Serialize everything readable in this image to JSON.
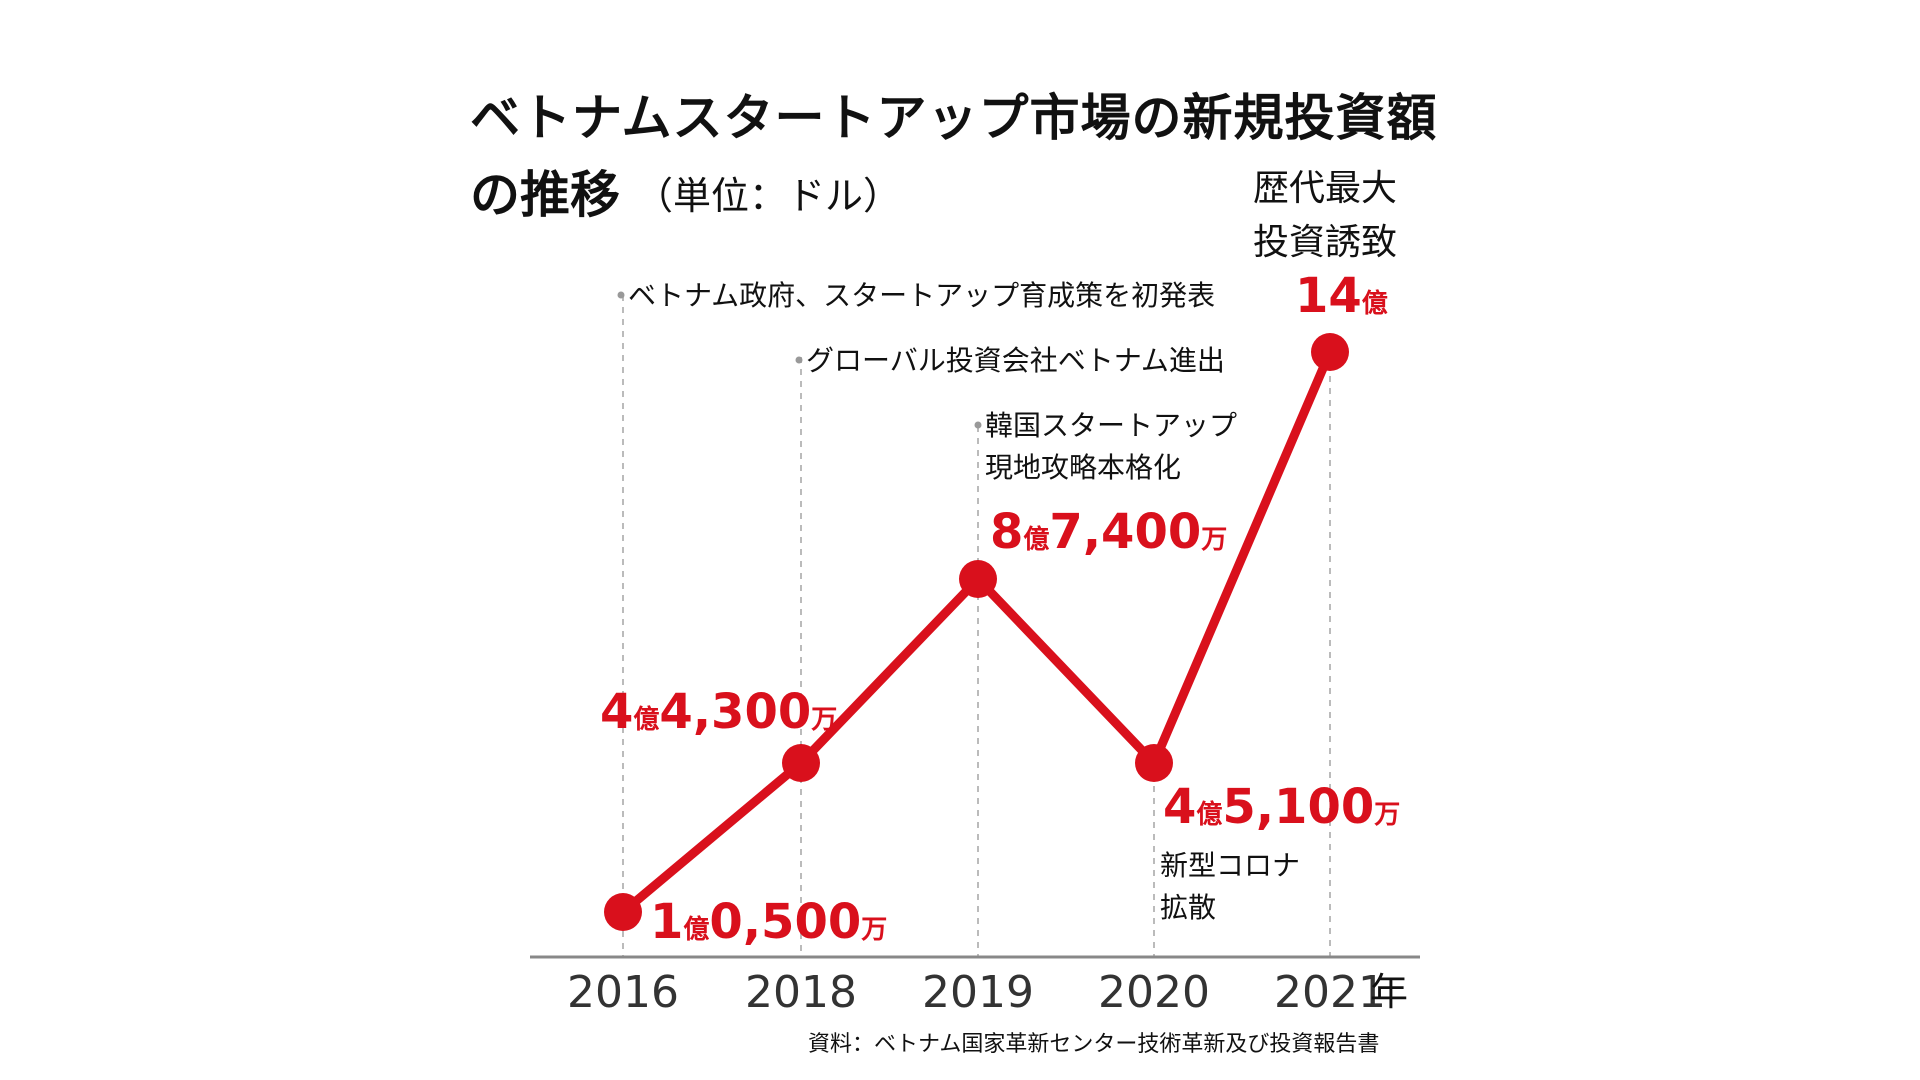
{
  "title_line1": "ベトナムスタートアップ市場の新規投資額",
  "title_line2": "の推移",
  "unit_label": "（単位：ドル）",
  "source": "資料：ベトナム国家革新センター技術革新及び投資報告書",
  "colors": {
    "line": "#d9101c",
    "axis": "#888888",
    "guide": "#bbbbbb",
    "text": "#111111"
  },
  "chart_data": {
    "type": "line",
    "categories": [
      "2016",
      "2018",
      "2019",
      "2020",
      "2021"
    ],
    "x_unit": "年",
    "values": [
      105000000,
      443000000,
      874000000,
      451000000,
      1400000000
    ],
    "ylim": [
      0,
      1500000000
    ],
    "grid": false,
    "data_labels": [
      {
        "big": "1",
        "oku": "億",
        "rest": "0,500",
        "man": "万"
      },
      {
        "big": "4",
        "oku": "億",
        "rest": "4,300",
        "man": "万"
      },
      {
        "big": "8",
        "oku": "億",
        "rest": "7,400",
        "man": "万"
      },
      {
        "big": "4",
        "oku": "億",
        "rest": "5,100",
        "man": "万"
      },
      {
        "big": "14",
        "oku": "億",
        "rest": "",
        "man": ""
      }
    ],
    "annotations": [
      {
        "lines": [
          "ベトナム政府、スタートアップ育成策を初発表"
        ]
      },
      {
        "lines": [
          "グローバル投資会社ベトナム進出"
        ]
      },
      {
        "lines": [
          "韓国スタートアップ",
          "現地攻略本格化"
        ]
      },
      {
        "lines": [
          "新型コロナ",
          "拡散"
        ]
      },
      {
        "lines": [
          "歴代最大",
          "投資誘致"
        ]
      }
    ]
  }
}
